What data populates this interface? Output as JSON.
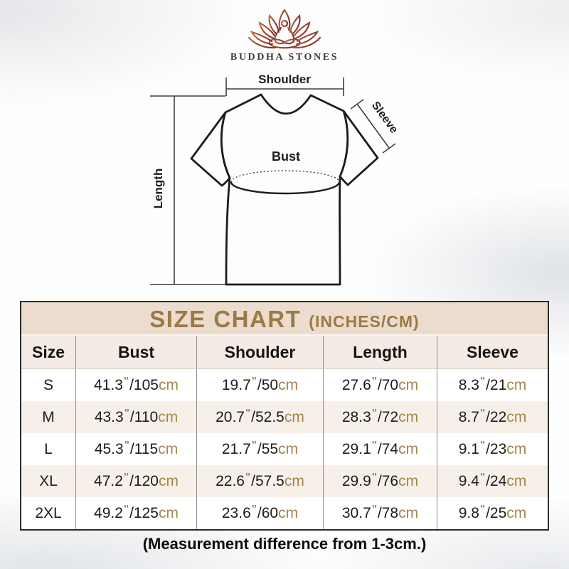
{
  "brand": {
    "name": "BUDDHA STONES"
  },
  "diagram": {
    "shoulder_label": "Shoulder",
    "sleeve_label": "Sleeve",
    "bust_label": "Bust",
    "length_label": "Length"
  },
  "size_chart": {
    "title": "SIZE CHART",
    "subtitle": "(INCHES/CM)",
    "columns": [
      "Size",
      "Bust",
      "Shoulder",
      "Length",
      "Sleeve"
    ],
    "unit_inch_mark": "\"",
    "unit_cm": "cm",
    "rows": [
      {
        "size": "S",
        "bust": [
          "41.3",
          "105"
        ],
        "shoulder": [
          "19.7",
          "50"
        ],
        "length": [
          "27.6",
          "70"
        ],
        "sleeve": [
          "8.3",
          "21"
        ]
      },
      {
        "size": "M",
        "bust": [
          "43.3",
          "110"
        ],
        "shoulder": [
          "20.7",
          "52.5"
        ],
        "length": [
          "28.3",
          "72"
        ],
        "sleeve": [
          "8.7",
          "22"
        ]
      },
      {
        "size": "L",
        "bust": [
          "45.3",
          "115"
        ],
        "shoulder": [
          "21.7",
          "55"
        ],
        "length": [
          "29.1",
          "74"
        ],
        "sleeve": [
          "9.1",
          "23"
        ]
      },
      {
        "size": "XL",
        "bust": [
          "47.2",
          "120"
        ],
        "shoulder": [
          "22.6",
          "57.5"
        ],
        "length": [
          "29.9",
          "76"
        ],
        "sleeve": [
          "9.4",
          "24"
        ]
      },
      {
        "size": "2XL",
        "bust": [
          "49.2",
          "125"
        ],
        "shoulder": [
          "23.6",
          "60"
        ],
        "length": [
          "30.7",
          "78"
        ],
        "sleeve": [
          "9.8",
          "25"
        ]
      }
    ]
  },
  "footer": {
    "note": "(Measurement difference from 1-3cm.)"
  },
  "colors": {
    "title_band_bg": "#ecdccd",
    "header_row_bg": "#f4ece4",
    "alt_row_bg": "#f6f0e9",
    "gold": "#9a7a45",
    "unit_brown": "#a8854f",
    "text_dark": "#1c1c1c",
    "table_border": "#2c2c2c",
    "divider": "#8f8f8f",
    "logo_gradient_start": "#b96a43",
    "logo_gradient_end": "#833226"
  },
  "chart_data": {
    "type": "table",
    "title": "SIZE CHART (INCHES/CM)",
    "columns": [
      "Size",
      "Bust",
      "Shoulder",
      "Length",
      "Sleeve"
    ],
    "rows": [
      [
        "S",
        "41.3\"/105cm",
        "19.7\"/50cm",
        "27.6\"/70cm",
        "8.3\"/21cm"
      ],
      [
        "M",
        "43.3\"/110cm",
        "20.7\"/52.5cm",
        "28.3\"/72cm",
        "8.7\"/22cm"
      ],
      [
        "L",
        "45.3\"/115cm",
        "21.7\"/55cm",
        "29.1\"/74cm",
        "9.1\"/23cm"
      ],
      [
        "XL",
        "47.2\"/120cm",
        "22.6\"/57.5cm",
        "29.9\"/76cm",
        "9.4\"/24cm"
      ],
      [
        "2XL",
        "49.2\"/125cm",
        "23.6\"/60cm",
        "30.7\"/78cm",
        "9.8\"/25cm"
      ]
    ],
    "note": "(Measurement difference from 1-3cm.)"
  }
}
